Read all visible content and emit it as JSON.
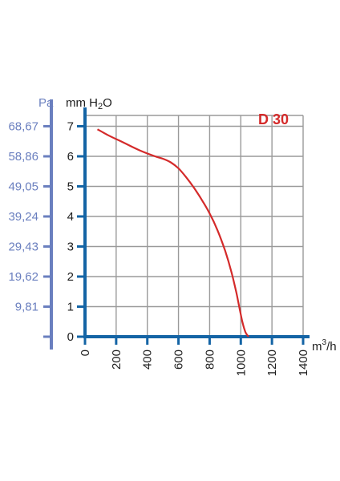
{
  "chart_data": {
    "type": "line",
    "title": "D 30",
    "left_axis_unit": "Pa",
    "y_unit_prefix": "mm H",
    "y_unit_sub": "2",
    "y_unit_suffix": "O",
    "x_unit_base": "m",
    "x_unit_sup": "3",
    "x_unit_suffix": "/h",
    "pa_ticks": [
      "68,67",
      "58,86",
      "49,05",
      "39,24",
      "29,43",
      "19,62",
      "9,81"
    ],
    "y_ticks": [
      "0",
      "1",
      "2",
      "3",
      "4",
      "5",
      "6",
      "7"
    ],
    "x_ticks": [
      "0",
      "200",
      "400",
      "600",
      "800",
      "1000",
      "1200",
      "1400"
    ],
    "xlim": [
      0,
      1400
    ],
    "ylim": [
      0,
      7.5
    ],
    "grid": true,
    "series": [
      {
        "color": "#d42a2a",
        "x": [
          80,
          150,
          250,
          350,
          450,
          500,
          550,
          600,
          650,
          700,
          750,
          800,
          850,
          900,
          940,
          970,
          990,
          1010,
          1030,
          1050
        ],
        "y": [
          6.9,
          6.7,
          6.45,
          6.2,
          6.0,
          5.92,
          5.8,
          5.6,
          5.3,
          4.95,
          4.55,
          4.1,
          3.55,
          2.85,
          2.15,
          1.5,
          1.0,
          0.5,
          0.15,
          0.0
        ]
      }
    ],
    "colors": {
      "axis": "#1464a5",
      "left_axis": "#6a7fbf",
      "grid": "#9a9a9a",
      "title": "#d42a2a"
    }
  }
}
